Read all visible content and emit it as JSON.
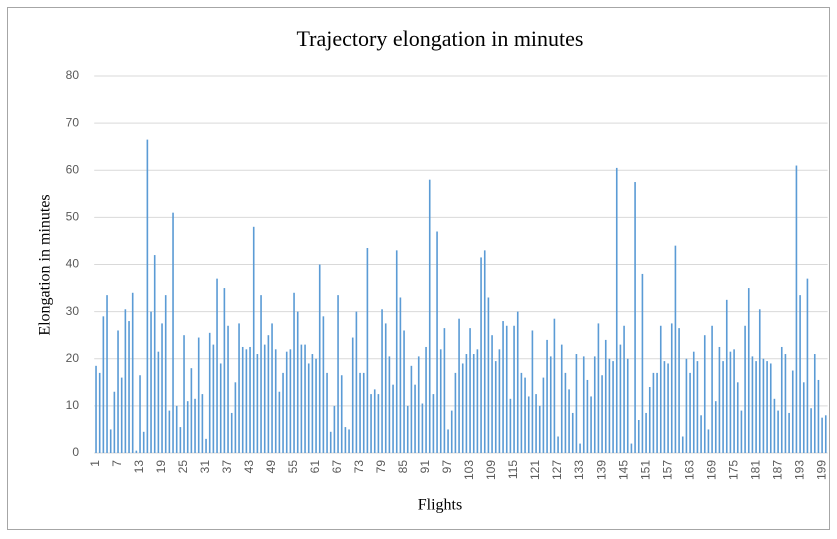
{
  "chart_data": {
    "type": "bar",
    "title": "Trajectory elongation in minutes",
    "x_label": "Flights",
    "y_label": "Elongation  in  minutes",
    "categories": [
      "1",
      null,
      null,
      null,
      null,
      null,
      "7",
      null,
      null,
      null,
      null,
      null,
      "13",
      null,
      null,
      null,
      null,
      null,
      "19",
      null,
      null,
      null,
      null,
      null,
      "25",
      null,
      null,
      null,
      null,
      null,
      "31",
      null,
      null,
      null,
      null,
      null,
      "37",
      null,
      null,
      null,
      null,
      null,
      "43",
      null,
      null,
      null,
      null,
      null,
      "49",
      null,
      null,
      null,
      null,
      null,
      "55",
      null,
      null,
      null,
      null,
      null,
      "61",
      null,
      null,
      null,
      null,
      null,
      "67",
      null,
      null,
      null,
      null,
      null,
      "73",
      null,
      null,
      null,
      null,
      null,
      "79",
      null,
      null,
      null,
      null,
      null,
      "85",
      null,
      null,
      null,
      null,
      null,
      "91",
      null,
      null,
      null,
      null,
      null,
      "97",
      null,
      null,
      null,
      null,
      null,
      "103",
      null,
      null,
      null,
      null,
      null,
      "109",
      null,
      null,
      null,
      null,
      null,
      "115",
      null,
      null,
      null,
      null,
      null,
      "121",
      null,
      null,
      null,
      null,
      null,
      "127",
      null,
      null,
      null,
      null,
      null,
      "133",
      null,
      null,
      null,
      null,
      null,
      "139",
      null,
      null,
      null,
      null,
      null,
      "145",
      null,
      null,
      null,
      null,
      null,
      "151",
      null,
      null,
      null,
      null,
      null,
      "157",
      null,
      null,
      null,
      null,
      null,
      "163",
      null,
      null,
      null,
      null,
      null,
      "169",
      null,
      null,
      null,
      null,
      null,
      "175",
      null,
      null,
      null,
      null,
      null,
      "181",
      null,
      null,
      null,
      null,
      null,
      "187",
      null,
      null,
      null,
      null,
      null,
      "193",
      null,
      null,
      null,
      null,
      null,
      "199",
      null
    ],
    "values": [
      18.5,
      17,
      29,
      33.5,
      5,
      13,
      26,
      16,
      30.5,
      28,
      34,
      0.5,
      16.5,
      4.5,
      66.5,
      30,
      42,
      21.5,
      27.5,
      33.5,
      9,
      51,
      10,
      5.5,
      25,
      11,
      18,
      11.5,
      24.5,
      12.5,
      3,
      25.5,
      23,
      37,
      19,
      35,
      27,
      8.5,
      15,
      27.5,
      22.5,
      22,
      22.5,
      48,
      21,
      33.5,
      23,
      25,
      27.5,
      22,
      13,
      17,
      21.5,
      22,
      34,
      30,
      23,
      23,
      19,
      21,
      20,
      40,
      29,
      17,
      4.5,
      10,
      33.5,
      16.5,
      5.5,
      5,
      24.5,
      30,
      17,
      17,
      43.5,
      12.5,
      13.5,
      12.5,
      30.5,
      27.5,
      20.5,
      14.5,
      43,
      33,
      26,
      10,
      18.5,
      14.5,
      20.5,
      10.5,
      22.5,
      58,
      12.5,
      47,
      22,
      26.5,
      5,
      9,
      17,
      28.5,
      19,
      21,
      26.5,
      21,
      22,
      41.5,
      43,
      33,
      25,
      19.5,
      22,
      28,
      27,
      11.5,
      27,
      30,
      17,
      16,
      12,
      26,
      12.5,
      10,
      16,
      24,
      20.5,
      28.5,
      3.5,
      23,
      17,
      13.5,
      8.5,
      21,
      2,
      20.5,
      15.5,
      12,
      20.5,
      27.5,
      16.5,
      24,
      20,
      19.5,
      60.5,
      23,
      27,
      20,
      2,
      57.5,
      7,
      38,
      8.5,
      14,
      17,
      17,
      27,
      19.5,
      19,
      27.5,
      44,
      26.5,
      3.5,
      20,
      17,
      21.5,
      19.5,
      8,
      25,
      5,
      27,
      11,
      22.5,
      19.5,
      32.5,
      21.5,
      22,
      15,
      9,
      27,
      35,
      20.5,
      19.5,
      30.5,
      20,
      19.5,
      19,
      11.5,
      9,
      22.5,
      21,
      8.5,
      17.5,
      61,
      33.5,
      15,
      37,
      9.5,
      21,
      15.5,
      7.5,
      8
    ],
    "color": "#5b9bd5",
    "ylim": [
      0,
      80
    ],
    "yticks": [
      0,
      10,
      20,
      30,
      40,
      50,
      60,
      70,
      80
    ],
    "grid": true
  }
}
